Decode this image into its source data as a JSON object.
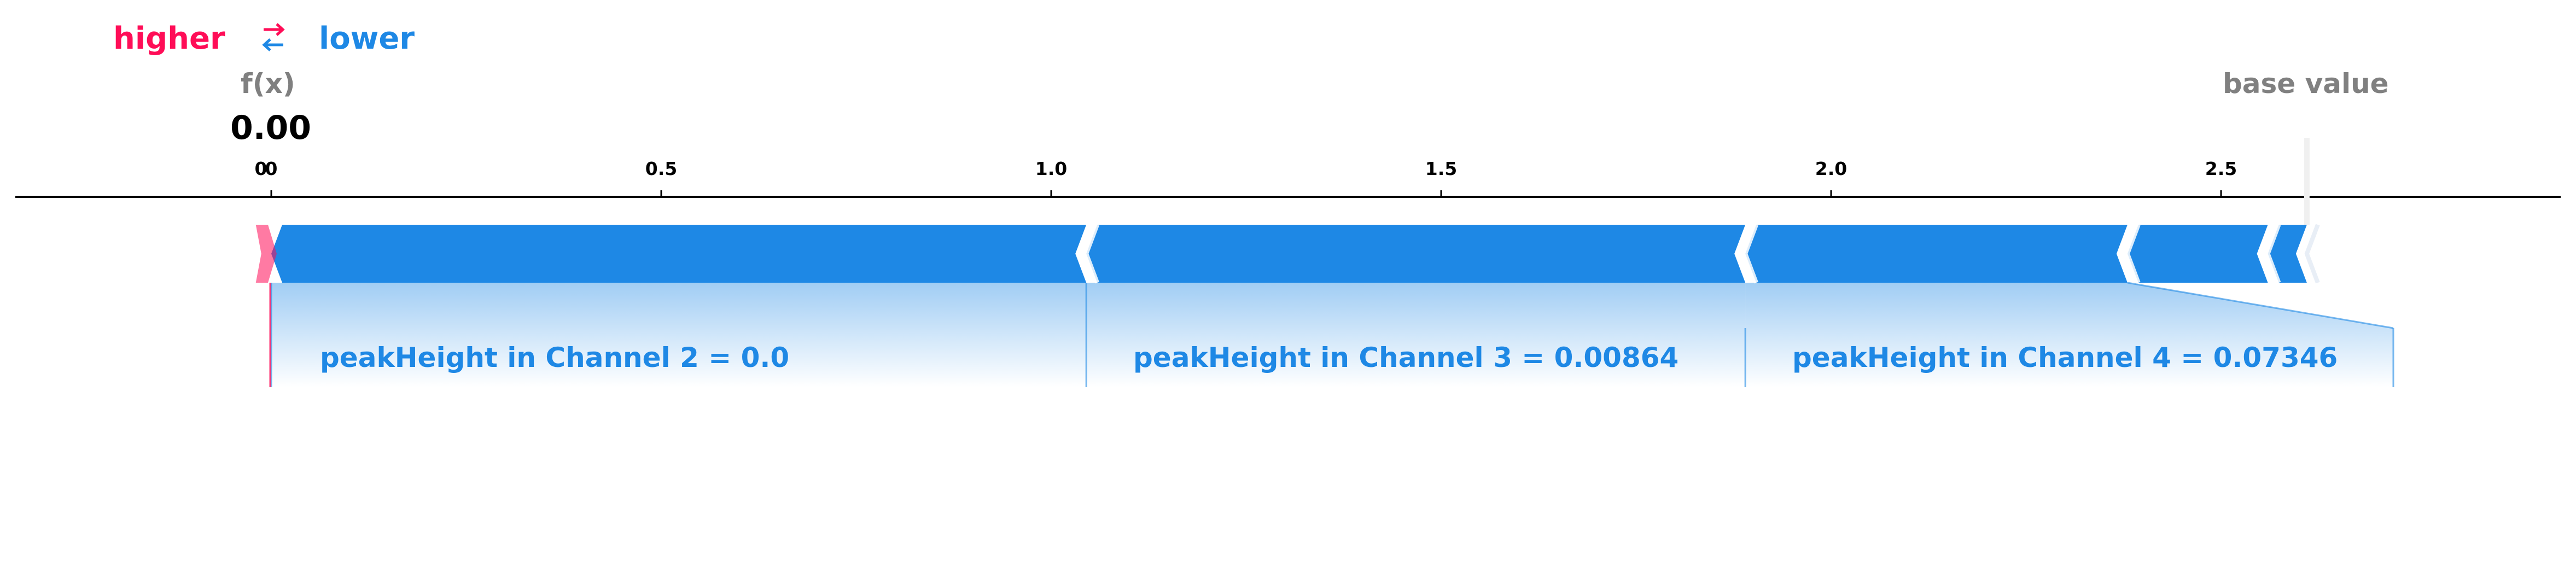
{
  "legend": {
    "higher_label": "higher",
    "lower_label": "lower",
    "arrows_icon": "swap-arrows-icon",
    "higher_color": "#ff0d57",
    "lower_color": "#1e88e5"
  },
  "output": {
    "fx_label": "f(x)",
    "fx_value": "0.00",
    "base_label": "base value"
  },
  "chart_data": {
    "type": "force-plot",
    "axis": {
      "xlim": [
        -0.65,
        2.95
      ],
      "ticks": [
        0,
        0.5,
        1.0,
        1.5,
        2.0,
        2.5
      ],
      "tick_labels": [
        "0",
        "0.5",
        "1.0",
        "1.5",
        "2.0",
        "2.5"
      ],
      "extra_tick_label": "0"
    },
    "output_value": 0.0,
    "base_value": 2.61,
    "higher_segments": [
      {
        "start": -0.01,
        "end": 0.0
      }
    ],
    "lower_segments": [
      {
        "start": 0.0,
        "end": 1.045,
        "label": "peakHeight in Channel 2 = 0.0"
      },
      {
        "start": 1.045,
        "end": 1.89,
        "label": "peakHeight in Channel 3 = 0.00864"
      },
      {
        "start": 1.89,
        "end": 2.38,
        "label": "peakHeight in Channel 4 = 0.07346"
      },
      {
        "start": 2.38,
        "end": 2.56
      },
      {
        "start": 2.56,
        "end": 2.61
      }
    ],
    "colors": {
      "higher": "#ff0d57",
      "lower": "#1e88e5"
    }
  }
}
